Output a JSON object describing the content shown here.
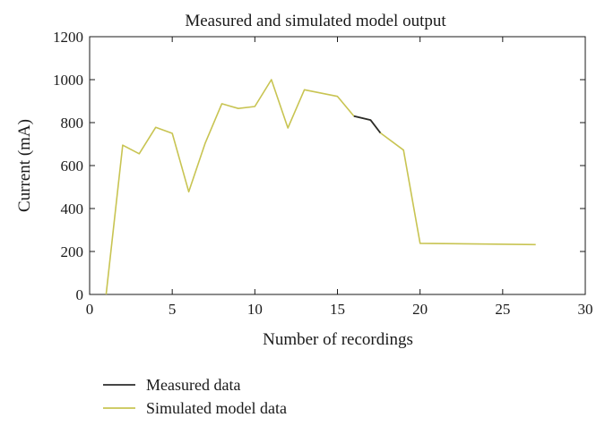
{
  "chart_data": {
    "type": "line",
    "title": "Measured and simulated model output",
    "xlabel": "Number of recordings",
    "ylabel": "Current (mA)",
    "xlim": [
      0,
      30
    ],
    "ylim": [
      0,
      1200
    ],
    "x_ticks": [
      "0",
      "5",
      "10",
      "15",
      "20",
      "25",
      "30"
    ],
    "y_ticks": [
      "0",
      "200",
      "400",
      "600",
      "800",
      "1000",
      "1200"
    ],
    "grid": false,
    "legend_placement": "bottom-left, below plot",
    "series": [
      {
        "name": "Measured data",
        "color": "#2b2b2b",
        "x": [
          16,
          17,
          17.6
        ],
        "y": [
          830,
          812,
          752
        ]
      },
      {
        "name": "Simulated model data",
        "color": "#c8c452",
        "x": [
          1,
          2,
          3,
          4,
          5,
          6,
          7,
          8,
          9,
          10,
          11,
          12,
          13,
          15,
          16,
          17,
          17.6,
          19,
          20,
          27
        ],
        "y": [
          0,
          695,
          655,
          778,
          750,
          478,
          705,
          888,
          866,
          875,
          1000,
          775,
          953,
          922,
          830,
          812,
          752,
          672,
          238,
          232
        ]
      }
    ]
  }
}
